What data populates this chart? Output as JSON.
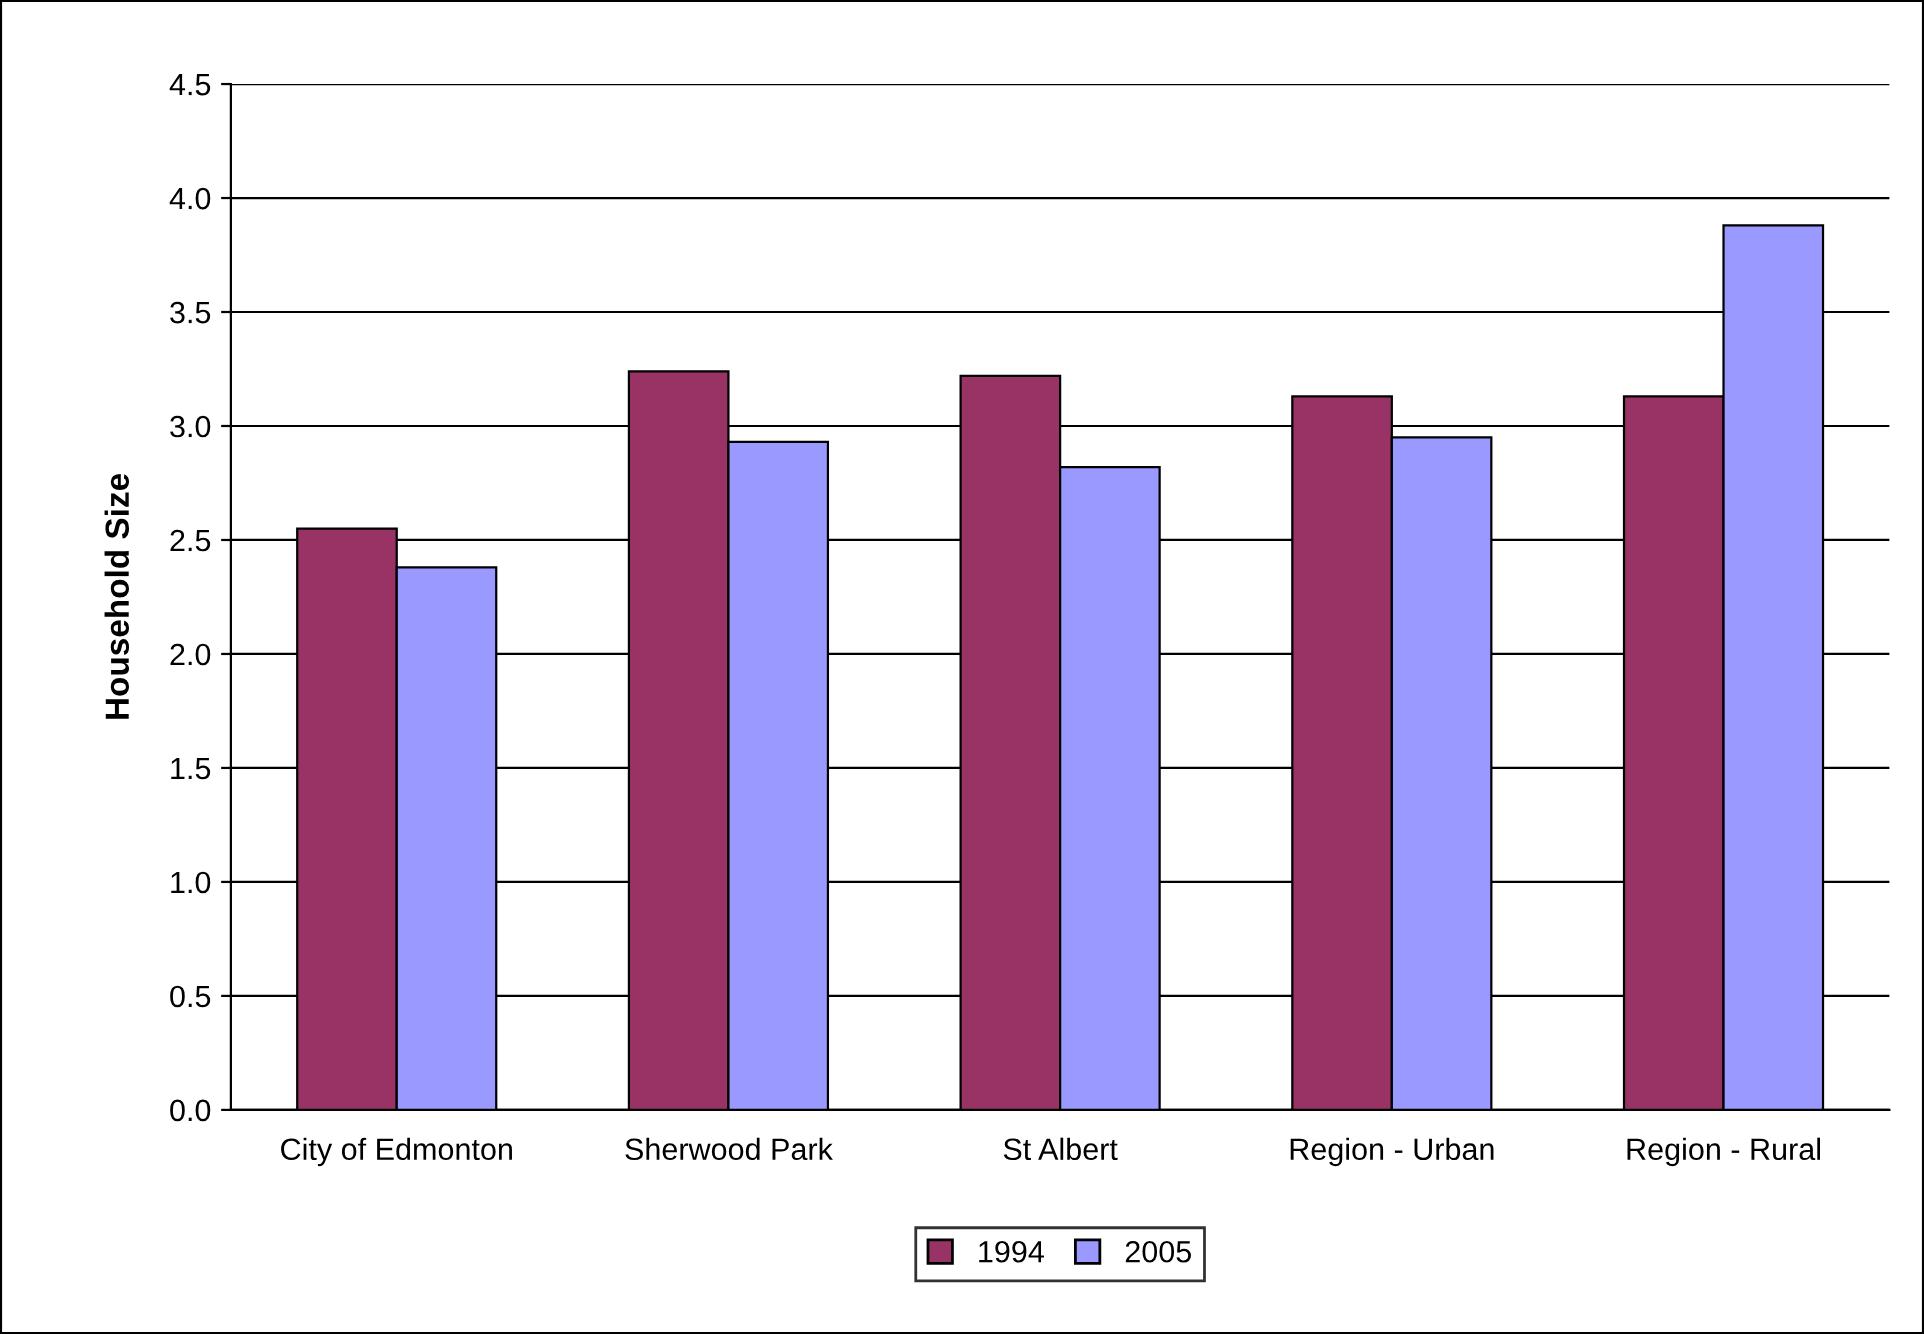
{
  "chart_data": {
    "type": "bar",
    "ylabel": "Household Size",
    "categories": [
      "City of Edmonton",
      "Sherwood Park",
      "St Albert",
      "Region - Urban",
      "Region - Rural"
    ],
    "series": [
      {
        "name": "1994",
        "color": "#993366",
        "values": [
          2.55,
          3.24,
          3.22,
          3.13,
          3.13
        ]
      },
      {
        "name": "2005",
        "color": "#9999ff",
        "values": [
          2.38,
          2.93,
          2.82,
          2.95,
          3.88
        ]
      }
    ],
    "ylim": [
      0,
      4.5
    ],
    "yticks": [
      {
        "value": 0,
        "label": "0.0"
      },
      {
        "value": 0.5,
        "label": "0.5"
      },
      {
        "value": 1,
        "label": "1.0"
      },
      {
        "value": 1.5,
        "label": "1.5"
      },
      {
        "value": 2,
        "label": "2.0"
      },
      {
        "value": 2.5,
        "label": "2.5"
      },
      {
        "value": 3,
        "label": "3.0"
      },
      {
        "value": 3.5,
        "label": "3.5"
      },
      {
        "value": 4,
        "label": "4.0"
      },
      {
        "value": 4.5,
        "label": "4.5"
      }
    ],
    "grid": "y",
    "legend": "bottom"
  }
}
